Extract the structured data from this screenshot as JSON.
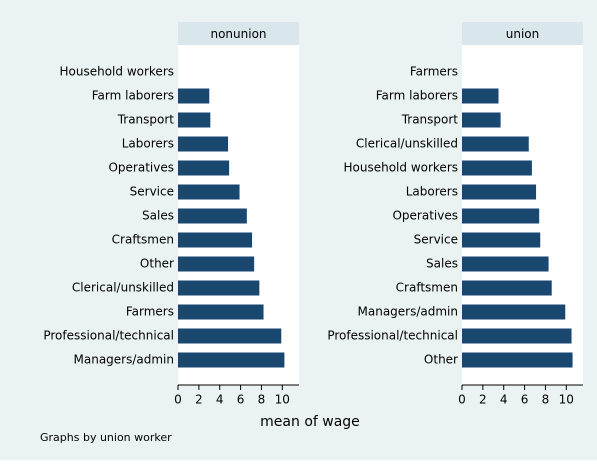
{
  "chart_data": {
    "type": "bar",
    "orientation": "horizontal",
    "xlabel": "mean of wage",
    "note": "Graphs by union worker",
    "xlim": [
      0,
      11.6
    ],
    "xticks": [
      0,
      2,
      4,
      6,
      8,
      10
    ],
    "color": "#1a476f",
    "panels": [
      {
        "title": "nonunion",
        "categories": [
          "Household workers",
          "Farm laborers",
          "Transport",
          "Laborers",
          "Operatives",
          "Service",
          "Sales",
          "Craftsmen",
          "Other",
          "Clerical/unskilled",
          "Farmers",
          "Professional/technical",
          "Managers/admin"
        ],
        "values": [
          null,
          3.0,
          3.1,
          4.8,
          4.9,
          5.9,
          6.6,
          7.1,
          7.3,
          7.8,
          8.2,
          9.9,
          10.2
        ]
      },
      {
        "title": "union",
        "categories": [
          "Farmers",
          "Farm laborers",
          "Transport",
          "Clerical/unskilled",
          "Household workers",
          "Laborers",
          "Operatives",
          "Service",
          "Sales",
          "Craftsmen",
          "Managers/admin",
          "Professional/technical",
          "Other"
        ],
        "values": [
          null,
          3.5,
          3.7,
          6.4,
          6.7,
          7.1,
          7.4,
          7.5,
          8.3,
          8.6,
          9.9,
          10.5,
          10.6
        ]
      }
    ]
  }
}
